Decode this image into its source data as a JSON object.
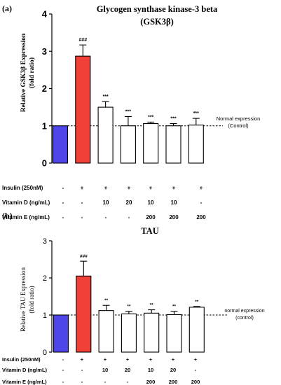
{
  "chart_data": [
    {
      "type": "bar",
      "panel_label": "(a)",
      "title_lines": [
        "Glycogen synthase kinase-3 beta",
        "(GSK3β)"
      ],
      "ylabel_lines": [
        "Relative GSK3β Expression",
        "(fold ratio)"
      ],
      "ylim": [
        0,
        4
      ],
      "yticks": [
        "0",
        "1",
        "2",
        "3",
        "4"
      ],
      "values": [
        1.0,
        2.87,
        1.5,
        1.0,
        1.06,
        1.0,
        1.02
      ],
      "errors": [
        0.0,
        0.3,
        0.15,
        0.25,
        0.04,
        0.06,
        0.18
      ],
      "significance": [
        "",
        "###",
        "***",
        "***",
        "***",
        "***",
        "***"
      ],
      "bar_colors": [
        "#4f46ea",
        "#f04038",
        "#ffffff",
        "#ffffff",
        "#ffffff",
        "#ffffff",
        "#ffffff"
      ],
      "reference_line": {
        "value": 1.0,
        "label_lines": [
          "Normal expression",
          "(Control)"
        ]
      },
      "treatments": [
        {
          "label": "Insulin (250nM)",
          "values": [
            "-",
            "+",
            "+",
            "+",
            "+",
            "+",
            "+"
          ]
        },
        {
          "label": "Vitamin D (ng/mL)",
          "values": [
            "-",
            "-",
            "10",
            "20",
            "10",
            "10",
            "-"
          ]
        },
        {
          "label": "Vitamin E (ng/mL)",
          "values": [
            "-",
            "-",
            "-",
            "-",
            "200",
            "200",
            "200"
          ]
        }
      ]
    },
    {
      "type": "bar",
      "panel_label": "(b)",
      "title_lines": [
        "TAU"
      ],
      "ylabel_lines": [
        "Relative TAU Expression",
        "(fold ratio)"
      ],
      "ylim": [
        0,
        3
      ],
      "yticks": [
        "0",
        "1",
        "2",
        "3"
      ],
      "values": [
        1.0,
        2.05,
        1.12,
        1.03,
        1.05,
        1.01,
        1.21
      ],
      "errors": [
        0.0,
        0.4,
        0.14,
        0.07,
        0.09,
        0.09,
        0.02
      ],
      "significance": [
        "",
        "###",
        "**",
        "**",
        "**",
        "**",
        "**"
      ],
      "bar_colors": [
        "#4f46ea",
        "#f04038",
        "#ffffff",
        "#ffffff",
        "#ffffff",
        "#ffffff",
        "#ffffff"
      ],
      "reference_line": {
        "value": 1.0,
        "label_lines": [
          "normal expression",
          "(control)"
        ]
      },
      "treatments": [
        {
          "label": "Insulin (250nM)",
          "values": [
            "-",
            "+",
            "+",
            "+",
            "+",
            "+",
            "+"
          ]
        },
        {
          "label": "Vitamin D (ng/mL)",
          "values": [
            "-",
            "-",
            "10",
            "20",
            "10",
            "20",
            "-"
          ]
        },
        {
          "label": "Vitamin E (ng/mL)",
          "values": [
            "-",
            "-",
            "-",
            "-",
            "200",
            "200",
            "200"
          ]
        }
      ]
    }
  ]
}
